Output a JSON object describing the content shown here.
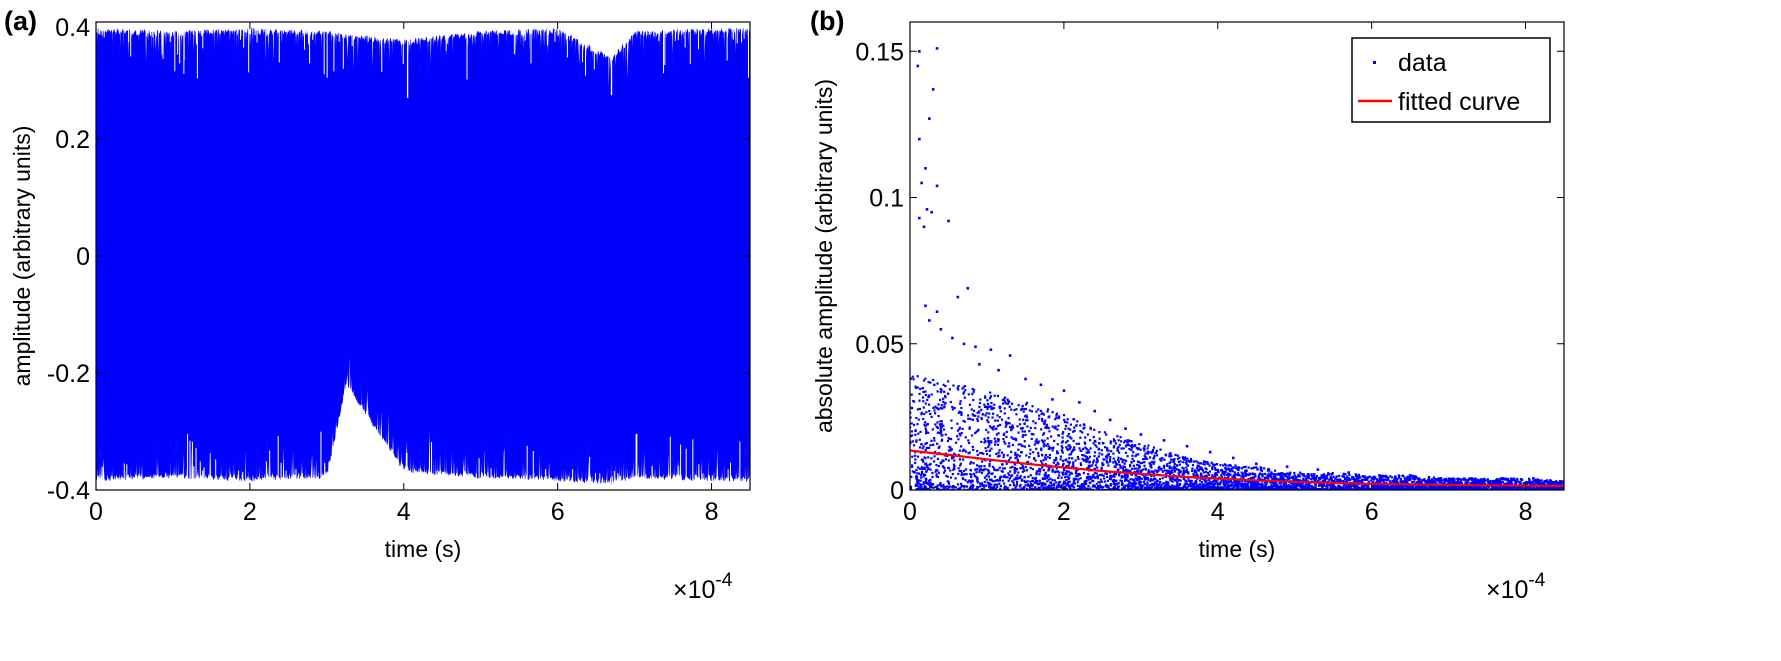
{
  "panel_labels": [
    "(a)",
    "(b)"
  ],
  "chart_data": [
    {
      "type": "area",
      "panel": "(a)",
      "title": "",
      "xlabel": "time (s)",
      "ylabel": "amplitude (arbitrary units)",
      "x_exponent_label": "×10",
      "x_exponent": "-4",
      "xlim": [
        0,
        8.5
      ],
      "ylim": [
        -0.4,
        0.4
      ],
      "xticks": [
        0,
        2,
        4,
        6,
        8
      ],
      "xtick_labels": [
        "0",
        "2",
        "4",
        "6",
        "8"
      ],
      "yticks": [
        0.4,
        0.2,
        0,
        -0.2,
        -0.4
      ],
      "ytick_labels": [
        "0.4",
        "0.2",
        "0",
        "-0.2",
        "-0.4"
      ],
      "grid": false,
      "series_color": "#0000ff",
      "description_of_values": "dense oscillation filling nearly the full range",
      "envelope": {
        "x": [
          0,
          1,
          2,
          3,
          3.25,
          4,
          5,
          6,
          6.7,
          7,
          8,
          8.5
        ],
        "upper": [
          0.39,
          0.385,
          0.39,
          0.385,
          0.38,
          0.37,
          0.385,
          0.39,
          0.34,
          0.385,
          0.39,
          0.39
        ],
        "lower": [
          -0.385,
          -0.38,
          -0.385,
          -0.38,
          -0.22,
          -0.37,
          -0.38,
          -0.385,
          -0.39,
          -0.38,
          -0.385,
          -0.385
        ]
      },
      "outlier_spikes": [
        {
          "x": 3.25,
          "y": -0.22
        },
        {
          "x": 4.05,
          "y": 0.27
        },
        {
          "x": 6.7,
          "y": 0.275
        }
      ]
    },
    {
      "type": "scatter",
      "panel": "(b)",
      "title": "",
      "xlabel": "time (s)",
      "ylabel": "absolute amplitude (arbitrary units)",
      "x_exponent_label": "×10",
      "x_exponent": "-4",
      "xlim": [
        0,
        8.5
      ],
      "ylim": [
        0,
        0.16
      ],
      "xticks": [
        0,
        2,
        4,
        6,
        8
      ],
      "xtick_labels": [
        "0",
        "2",
        "4",
        "6",
        "8"
      ],
      "yticks": [
        0,
        0.05,
        0.1,
        0.15
      ],
      "ytick_labels": [
        "0",
        "0.05",
        "0.1",
        "0.15"
      ],
      "grid": false,
      "legend": {
        "position": "top-right",
        "entries": [
          "data",
          "fitted curve"
        ]
      },
      "series": [
        {
          "name": "data",
          "kind": "scatter",
          "color": "#0000ff",
          "points": [
            [
              0.12,
              0.15
            ],
            [
              0.35,
              0.151
            ],
            [
              0.1,
              0.145
            ],
            [
              0.3,
              0.137
            ],
            [
              0.25,
              0.127
            ],
            [
              0.12,
              0.12
            ],
            [
              0.2,
              0.11
            ],
            [
              0.15,
              0.105
            ],
            [
              0.35,
              0.104
            ],
            [
              0.22,
              0.096
            ],
            [
              0.12,
              0.093
            ],
            [
              0.5,
              0.092
            ],
            [
              0.18,
              0.09
            ],
            [
              0.28,
              0.095
            ],
            [
              0.62,
              0.066
            ],
            [
              0.75,
              0.069
            ],
            [
              0.2,
              0.063
            ],
            [
              0.35,
              0.061
            ],
            [
              0.25,
              0.058
            ],
            [
              0.4,
              0.055
            ],
            [
              0.55,
              0.052
            ],
            [
              0.7,
              0.05
            ],
            [
              0.85,
              0.049
            ],
            [
              1.05,
              0.048
            ],
            [
              1.3,
              0.046
            ],
            [
              0.9,
              0.043
            ],
            [
              1.15,
              0.041
            ],
            [
              1.5,
              0.038
            ],
            [
              1.7,
              0.036
            ],
            [
              2.0,
              0.034
            ],
            [
              1.85,
              0.031
            ],
            [
              2.2,
              0.03
            ],
            [
              2.4,
              0.027
            ],
            [
              2.6,
              0.024
            ],
            [
              2.8,
              0.021
            ],
            [
              3.0,
              0.019
            ],
            [
              3.3,
              0.017
            ],
            [
              3.6,
              0.015
            ],
            [
              3.9,
              0.013
            ],
            [
              4.2,
              0.011
            ],
            [
              4.5,
              0.009
            ],
            [
              4.9,
              0.008
            ],
            [
              5.3,
              0.007
            ],
            [
              5.7,
              0.006
            ],
            [
              6.1,
              0.005
            ],
            [
              6.5,
              0.005
            ],
            [
              6.9,
              0.004
            ],
            [
              7.3,
              0.004
            ],
            [
              7.7,
              0.004
            ],
            [
              8.1,
              0.004
            ],
            [
              8.45,
              0.003
            ]
          ],
          "dense_cloud": {
            "x": [
              0,
              0.5,
              1,
              1.5,
              2,
              2.5,
              3,
              3.5,
              4,
              4.5,
              5,
              5.5,
              6,
              6.5,
              7,
              7.5,
              8,
              8.5
            ],
            "upper": [
              0.04,
              0.038,
              0.034,
              0.03,
              0.026,
              0.02,
              0.016,
              0.012,
              0.009,
              0.008,
              0.006,
              0.006,
              0.005,
              0.005,
              0.004,
              0.004,
              0.004,
              0.003
            ]
          }
        },
        {
          "name": "fitted curve",
          "kind": "line",
          "color": "#ff0000",
          "x": [
            0,
            0.5,
            1,
            1.5,
            2,
            2.5,
            3,
            3.5,
            4,
            4.5,
            5,
            5.5,
            6,
            6.5,
            7,
            7.5,
            8,
            8.5
          ],
          "y": [
            0.0135,
            0.012,
            0.0105,
            0.009,
            0.0077,
            0.0065,
            0.0055,
            0.0046,
            0.0039,
            0.0033,
            0.0028,
            0.0024,
            0.0021,
            0.0019,
            0.0017,
            0.0016,
            0.0015,
            0.0014
          ]
        }
      ]
    }
  ]
}
